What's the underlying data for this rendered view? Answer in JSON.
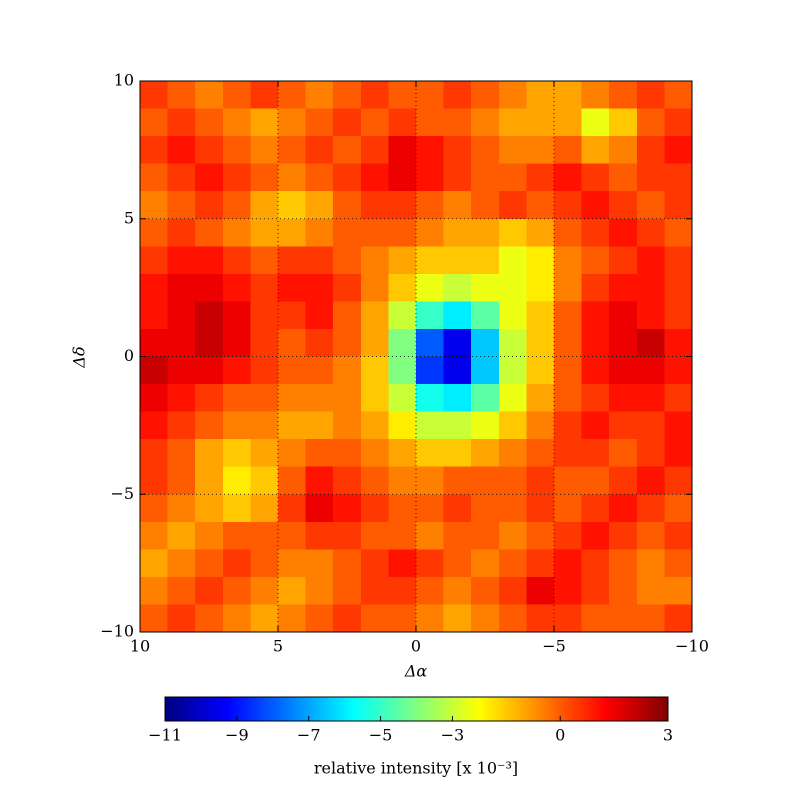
{
  "chart_data": {
    "type": "heatmap",
    "x_label": "Δα",
    "y_label": "Δδ",
    "colorbar_label": "relative intensity [x 10⁻³]",
    "colormap": "jet",
    "xlim": [
      10,
      -10
    ],
    "ylim": [
      -10,
      10
    ],
    "xticks": [
      10,
      5,
      0,
      {
        "value": -5,
        "label": "−5"
      },
      {
        "value": -10,
        "label": "−10"
      }
    ],
    "yticks": [
      {
        "value": -10,
        "label": "−10"
      },
      {
        "value": -5,
        "label": "−5"
      },
      0,
      5,
      10
    ],
    "grid": true,
    "clim": [
      -11,
      3
    ],
    "colorbar_ticks": [
      {
        "value": -11,
        "label": "−11"
      },
      {
        "value": -9,
        "label": "−9"
      },
      {
        "value": -7,
        "label": "−7"
      },
      {
        "value": -5,
        "label": "−5"
      },
      {
        "value": -3,
        "label": "−3"
      },
      0,
      3
    ],
    "x": [
      9.5,
      8.5,
      7.5,
      6.5,
      5.5,
      4.5,
      3.5,
      2.5,
      1.5,
      0.5,
      -0.5,
      -1.5,
      -2.5,
      -3.5,
      -4.5,
      -5.5,
      -6.5,
      -7.5,
      -8.5,
      -9.5
    ],
    "y": [
      9.5,
      8.5,
      7.5,
      6.5,
      5.5,
      4.5,
      3.5,
      2.5,
      1.5,
      0.5,
      -0.5,
      -1.5,
      -2.5,
      -3.5,
      -4.5,
      -5.5,
      -6.5,
      -7.5,
      -8.5,
      -9.5
    ],
    "z": [
      [
        0.5,
        0,
        -0.5,
        0,
        0.5,
        0,
        -0.5,
        0,
        0.5,
        0,
        0,
        0.5,
        0,
        -0.5,
        -1,
        -1,
        -0.5,
        0,
        0.5,
        0
      ],
      [
        0,
        0.5,
        0,
        -0.5,
        -1,
        -0.5,
        0,
        0.5,
        0,
        0.5,
        0,
        0,
        -0.5,
        -1,
        -1,
        -1,
        -2.5,
        -1.5,
        0,
        0.5
      ],
      [
        0.5,
        1,
        0.5,
        0,
        -0.5,
        0,
        0.5,
        0,
        0.5,
        1.5,
        1,
        0.5,
        0,
        -0.5,
        -0.5,
        0,
        -1,
        -0.5,
        0.5,
        1
      ],
      [
        0,
        0.5,
        1,
        0.5,
        0,
        -0.5,
        0,
        0.5,
        1,
        1.5,
        1,
        0.5,
        0,
        0,
        0.5,
        1,
        0.5,
        0,
        0.5,
        0.5
      ],
      [
        -0.5,
        0,
        0.5,
        0,
        -1,
        -1.5,
        -1,
        0,
        0.5,
        0.5,
        0,
        -0.5,
        0,
        0.5,
        0,
        0.5,
        1,
        0.5,
        0,
        0.5
      ],
      [
        0,
        0.5,
        0,
        -0.5,
        -1,
        -1,
        -0.5,
        0,
        0,
        0,
        -0.5,
        -1,
        -1,
        -1.5,
        -1,
        0,
        0.5,
        1,
        0.5,
        0
      ],
      [
        0.5,
        1,
        1,
        0.5,
        0,
        0.5,
        0.5,
        0,
        -0.5,
        -1,
        -1.5,
        -1.5,
        -1.5,
        -2.5,
        -2,
        -0.5,
        0,
        0.5,
        1,
        0.5
      ],
      [
        1,
        1.5,
        1.5,
        1,
        0.5,
        1,
        1,
        0.5,
        -0.5,
        -1.5,
        -2.5,
        -3,
        -2.5,
        -2.5,
        -2,
        -0.5,
        0.5,
        1,
        1,
        0.5
      ],
      [
        1,
        1.5,
        2,
        1.5,
        0.5,
        0.5,
        1,
        0,
        -1,
        -3,
        -5,
        -6,
        -4.5,
        -2.5,
        -1.5,
        0,
        1,
        1.5,
        1,
        0.5
      ],
      [
        1.5,
        1.5,
        2,
        1.5,
        0.5,
        0,
        0.5,
        0,
        -1,
        -4,
        -8,
        -9.5,
        -6.5,
        -3,
        -1.5,
        0,
        1,
        1.5,
        2,
        1
      ],
      [
        2,
        1.5,
        1.5,
        1,
        0.5,
        0,
        0,
        -0.5,
        -1.5,
        -4,
        -8.5,
        -9.5,
        -6.5,
        -3,
        -1.5,
        0,
        1,
        1.5,
        1.5,
        1
      ],
      [
        1.5,
        1,
        0.5,
        0,
        0,
        -0.5,
        -0.5,
        -0.5,
        -1.5,
        -3,
        -5.5,
        -6,
        -4.5,
        -2.5,
        -1,
        0,
        0.5,
        1,
        1,
        0.5
      ],
      [
        1,
        0.5,
        0,
        -0.5,
        -0.5,
        -1,
        -1,
        -0.5,
        -1,
        -2,
        -3,
        -3,
        -2.5,
        -1.5,
        -0.5,
        0.5,
        1,
        0.5,
        0.5,
        1
      ],
      [
        0.5,
        0,
        -1,
        -1.5,
        -1,
        -0.5,
        0,
        0,
        -0.5,
        -1,
        -1.5,
        -1.5,
        -1,
        -0.5,
        0,
        0.5,
        0.5,
        0,
        0.5,
        1
      ],
      [
        0.5,
        0,
        -1,
        -2,
        -1.5,
        0,
        1,
        0.5,
        0,
        -0.5,
        -0.5,
        0,
        0,
        0,
        0.5,
        0,
        0,
        0.5,
        1,
        0.5
      ],
      [
        0,
        -0.5,
        -1,
        -1.5,
        -1,
        0.5,
        1.5,
        1,
        0.5,
        0,
        0,
        0.5,
        0,
        0,
        0.5,
        0,
        0.5,
        1,
        0.5,
        0
      ],
      [
        -0.5,
        -1,
        -0.5,
        0,
        0,
        0,
        0.5,
        0.5,
        0,
        0,
        -0.5,
        0,
        0,
        -0.5,
        0,
        0.5,
        1,
        0.5,
        0,
        0.5
      ],
      [
        -1,
        -0.5,
        0,
        0.5,
        0,
        -0.5,
        -0.5,
        0,
        0.5,
        1,
        0.5,
        0,
        -0.5,
        0,
        0.5,
        1,
        0.5,
        0,
        -0.5,
        0
      ],
      [
        -0.5,
        0,
        0.5,
        0,
        -0.5,
        -1,
        -0.5,
        0,
        0.5,
        0.5,
        0,
        -0.5,
        0,
        0.5,
        1.5,
        1,
        0.5,
        0,
        -0.5,
        -0.5
      ],
      [
        0,
        0.5,
        0,
        -0.5,
        -1,
        -0.5,
        0,
        0.5,
        0,
        0,
        -0.5,
        -1,
        -0.5,
        0,
        0.5,
        0.5,
        0,
        0,
        0,
        0.5
      ]
    ]
  }
}
